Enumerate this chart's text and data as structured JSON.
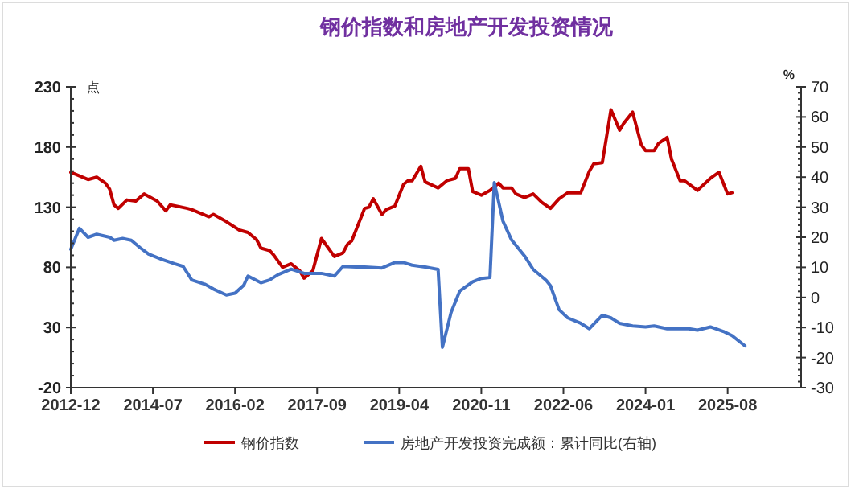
{
  "chart_data": {
    "type": "line",
    "title": "钢价指数和房地产开发投资情况",
    "ylabel": "点",
    "y2label": "%",
    "legend": "bottom",
    "xlim": [
      "2012-12",
      "2027-01"
    ],
    "xticks": [
      "2012-12",
      "2014-07",
      "2016-02",
      "2017-09",
      "2019-04",
      "2020-11",
      "2022-06",
      "2024-01",
      "2025-08"
    ],
    "ylim": [
      -20,
      230
    ],
    "yticks": [
      -20,
      30,
      80,
      130,
      180,
      230
    ],
    "y2lim": [
      -30,
      70
    ],
    "y2ticks": [
      -30,
      -20,
      -10,
      0,
      10,
      20,
      30,
      40,
      50,
      60,
      70
    ],
    "series": [
      {
        "name": "钢价指数",
        "color": "#c00000",
        "x": [
          "2012-12",
          "2013-02",
          "2013-04",
          "2013-06",
          "2013-08",
          "2013-09",
          "2013-10",
          "2013-11",
          "2014-01",
          "2014-03",
          "2014-05",
          "2014-08",
          "2014-10",
          "2014-11",
          "2015-03",
          "2015-04",
          "2015-06",
          "2015-08",
          "2015-09",
          "2015-12",
          "2016-03",
          "2016-05",
          "2016-07",
          "2016-08",
          "2016-10",
          "2016-11",
          "2017-01",
          "2017-03",
          "2017-05",
          "2017-06",
          "2017-08",
          "2017-10",
          "2018-01",
          "2018-03",
          "2018-04",
          "2018-05",
          "2018-08",
          "2018-09",
          "2018-10",
          "2018-12",
          "2019-01",
          "2019-03",
          "2019-05",
          "2019-06",
          "2019-07",
          "2019-09",
          "2019-10",
          "2020-01",
          "2020-03",
          "2020-05",
          "2020-06",
          "2020-08",
          "2020-09",
          "2020-11",
          "2021-01",
          "2021-03",
          "2021-04",
          "2021-06",
          "2021-07",
          "2021-09",
          "2021-11",
          "2022-01",
          "2022-03",
          "2022-05",
          "2022-07",
          "2022-10",
          "2022-12",
          "2023-01",
          "2023-03",
          "2023-05",
          "2023-07",
          "2023-08",
          "2023-10",
          "2023-12",
          "2024-01",
          "2024-03",
          "2024-04",
          "2024-06",
          "2024-07",
          "2024-09",
          "2024-10",
          "2025-01",
          "2025-04",
          "2025-06",
          "2025-08",
          "2025-09"
        ],
        "values": [
          159,
          156,
          153,
          155,
          150,
          145,
          132,
          129,
          136,
          135,
          141,
          135,
          127,
          132,
          129,
          128,
          125,
          122,
          124,
          118,
          111,
          109,
          103,
          96,
          94,
          90,
          80,
          83,
          77,
          71,
          77,
          104,
          89,
          92,
          99,
          102,
          129,
          130,
          137,
          124,
          128,
          131,
          149,
          152,
          152,
          164,
          151,
          146,
          152,
          154,
          162,
          162,
          143,
          140,
          144,
          150,
          146,
          146,
          141,
          138,
          141,
          134,
          129,
          137,
          142,
          142,
          160,
          166,
          167,
          211,
          194,
          200,
          209,
          182,
          177,
          177,
          183,
          188,
          170,
          152,
          152,
          144,
          154,
          159,
          141,
          142
        ]
      },
      {
        "name": "房地产开发投资完成额：累计同比(右轴)",
        "color": "#4472c4",
        "axis": "y2",
        "x": [
          "2012-12",
          "2013-02",
          "2013-04",
          "2013-06",
          "2013-09",
          "2013-10",
          "2013-12",
          "2014-02",
          "2014-04",
          "2014-06",
          "2014-09",
          "2014-12",
          "2015-02",
          "2015-04",
          "2015-07",
          "2015-09",
          "2015-12",
          "2016-02",
          "2016-04",
          "2016-05",
          "2016-08",
          "2016-10",
          "2016-12",
          "2017-03",
          "2017-06",
          "2017-10",
          "2018-01",
          "2018-03",
          "2018-06",
          "2018-08",
          "2018-12",
          "2019-03",
          "2019-05",
          "2019-07",
          "2019-10",
          "2020-01",
          "2020-02",
          "2020-04",
          "2020-06",
          "2020-09",
          "2020-11",
          "2021-01",
          "2021-02",
          "2021-04",
          "2021-06",
          "2021-09",
          "2021-11",
          "2022-02",
          "2022-03",
          "2022-05",
          "2022-07",
          "2022-10",
          "2022-12",
          "2023-03",
          "2023-05",
          "2023-07",
          "2023-10",
          "2024-01",
          "2024-03",
          "2024-06",
          "2024-11",
          "2025-01",
          "2025-04",
          "2025-07",
          "2025-09",
          "2025-12"
        ],
        "values": [
          16,
          23,
          20,
          21,
          20,
          19,
          19.6,
          19,
          16.6,
          14.4,
          12.7,
          11.2,
          10.3,
          5.8,
          4.4,
          2.8,
          0.8,
          1.4,
          4,
          7.1,
          4.9,
          5.8,
          7.6,
          9.4,
          8,
          8,
          7.1,
          10.3,
          10.1,
          10.1,
          9.8,
          11.6,
          11.6,
          10.7,
          10.1,
          9.3,
          -16.6,
          -5,
          2.1,
          5.2,
          6.3,
          6.6,
          38.2,
          25.4,
          19.1,
          13.8,
          9.3,
          5.7,
          3.9,
          -4.1,
          -6.8,
          -8.6,
          -10.4,
          -5.9,
          -6.8,
          -8.6,
          -9.5,
          -9.8,
          -9.5,
          -10.4,
          -10.4,
          -10.9,
          -9.8,
          -11.3,
          -12.7,
          -16.1
        ]
      }
    ]
  }
}
